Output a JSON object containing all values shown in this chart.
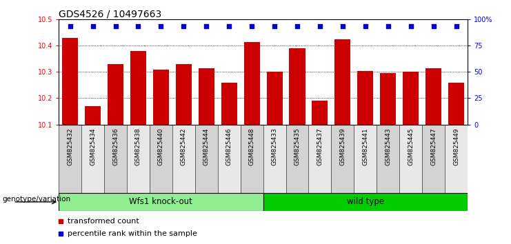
{
  "title": "GDS4526 / 10497663",
  "categories": [
    "GSM825432",
    "GSM825434",
    "GSM825436",
    "GSM825438",
    "GSM825440",
    "GSM825442",
    "GSM825444",
    "GSM825446",
    "GSM825448",
    "GSM825433",
    "GSM825435",
    "GSM825437",
    "GSM825439",
    "GSM825441",
    "GSM825443",
    "GSM825445",
    "GSM825447",
    "GSM825449"
  ],
  "bar_values": [
    10.43,
    10.17,
    10.33,
    10.38,
    10.31,
    10.33,
    10.315,
    10.26,
    10.415,
    10.3,
    10.39,
    10.19,
    10.425,
    10.305,
    10.295,
    10.3,
    10.315,
    10.26
  ],
  "percentile_values": [
    100,
    100,
    100,
    100,
    100,
    100,
    100,
    100,
    100,
    100,
    100,
    100,
    100,
    100,
    100,
    100,
    100,
    100
  ],
  "ylim_left": [
    10.1,
    10.5
  ],
  "ylim_right": [
    0,
    100
  ],
  "yticks_left": [
    10.1,
    10.2,
    10.3,
    10.4,
    10.5
  ],
  "yticks_right": [
    0,
    25,
    50,
    75,
    100
  ],
  "ytick_labels_right": [
    "0",
    "25",
    "50",
    "75",
    "100%"
  ],
  "bar_color": "#cc0000",
  "percentile_color": "#0000cc",
  "group1_label": "Wfs1 knock-out",
  "group2_label": "wild type",
  "group1_bg": "#90ee90",
  "group2_bg": "#00cc00",
  "tick_bg_odd": "#d3d3d3",
  "tick_bg_even": "#e8e8e8",
  "genotype_label": "genotype/variation",
  "legend_bar_label": "transformed count",
  "legend_pct_label": "percentile rank within the sample",
  "background_color": "#ffffff",
  "title_fontsize": 10,
  "tick_fontsize": 7,
  "bar_width": 0.7,
  "n_group1": 9,
  "n_group2": 9
}
